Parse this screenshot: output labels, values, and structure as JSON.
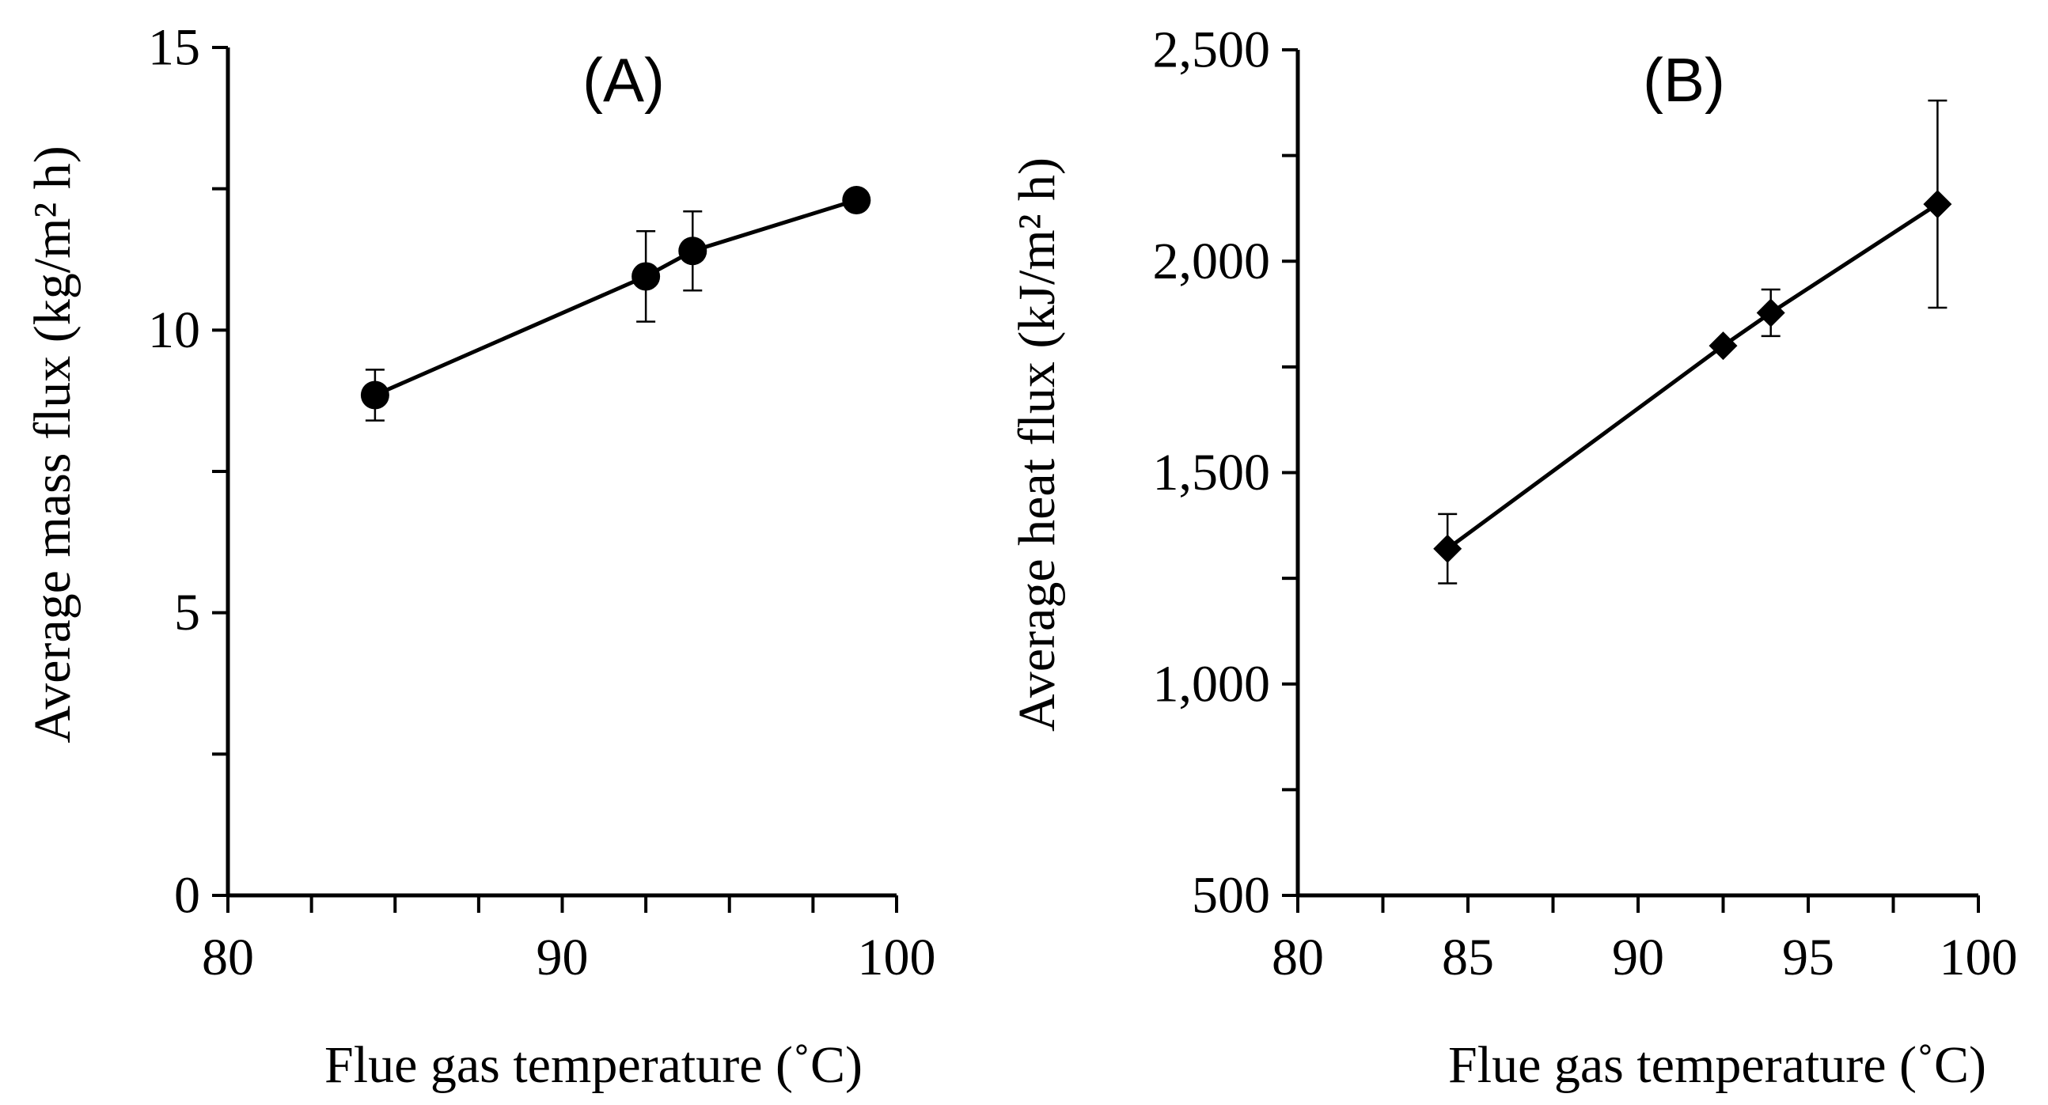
{
  "chart_data": [
    {
      "type": "line",
      "panel_label": "(A)",
      "xlabel": "Flue gas temperature (˚C)",
      "ylabel": "Average mass flux (kg/m² h)",
      "xlim": [
        80,
        100
      ],
      "ylim": [
        0,
        15
      ],
      "x_ticks": [
        80,
        90,
        100
      ],
      "x_tick_labels": [
        "80",
        "90",
        "100"
      ],
      "x_minor_ticks": [
        82.5,
        85,
        87.5,
        92.5,
        95,
        97.5
      ],
      "y_ticks": [
        0,
        5,
        10,
        15
      ],
      "y_tick_labels": [
        "0",
        "5",
        "10",
        "15"
      ],
      "y_minor_ticks": [
        2.5,
        7.5,
        12.5
      ],
      "marker": "circle",
      "color": "#000000",
      "series": [
        {
          "name": "Average mass flux",
          "x": [
            84.4,
            92.5,
            93.9,
            98.8
          ],
          "values": [
            8.85,
            10.95,
            11.4,
            12.3
          ],
          "error": [
            0.45,
            0.8,
            0.7,
            0.0
          ]
        }
      ]
    },
    {
      "type": "line",
      "panel_label": "(B)",
      "xlabel": "Flue gas temperature (˚C)",
      "ylabel": "Average heat flux (kJ/m² h)",
      "xlim": [
        80,
        100
      ],
      "ylim": [
        500,
        2500
      ],
      "x_ticks": [
        80,
        85,
        90,
        95,
        100
      ],
      "x_tick_labels": [
        "80",
        "85",
        "90",
        "95",
        "100"
      ],
      "x_minor_ticks": [
        82.5,
        87.5,
        92.5,
        97.5
      ],
      "y_ticks": [
        500,
        1000,
        1500,
        2000,
        2500
      ],
      "y_tick_labels": [
        "500",
        "1,000",
        "1,500",
        "2,000",
        "2,500"
      ],
      "y_minor_ticks": [
        750,
        1250,
        1750,
        2250
      ],
      "marker": "diamond",
      "color": "#000000",
      "series": [
        {
          "name": "Average heat flux",
          "x": [
            84.4,
            92.5,
            93.9,
            98.8
          ],
          "values": [
            1320,
            1800,
            1878,
            2135
          ],
          "error": [
            82,
            0,
            55,
            245
          ]
        }
      ]
    }
  ]
}
